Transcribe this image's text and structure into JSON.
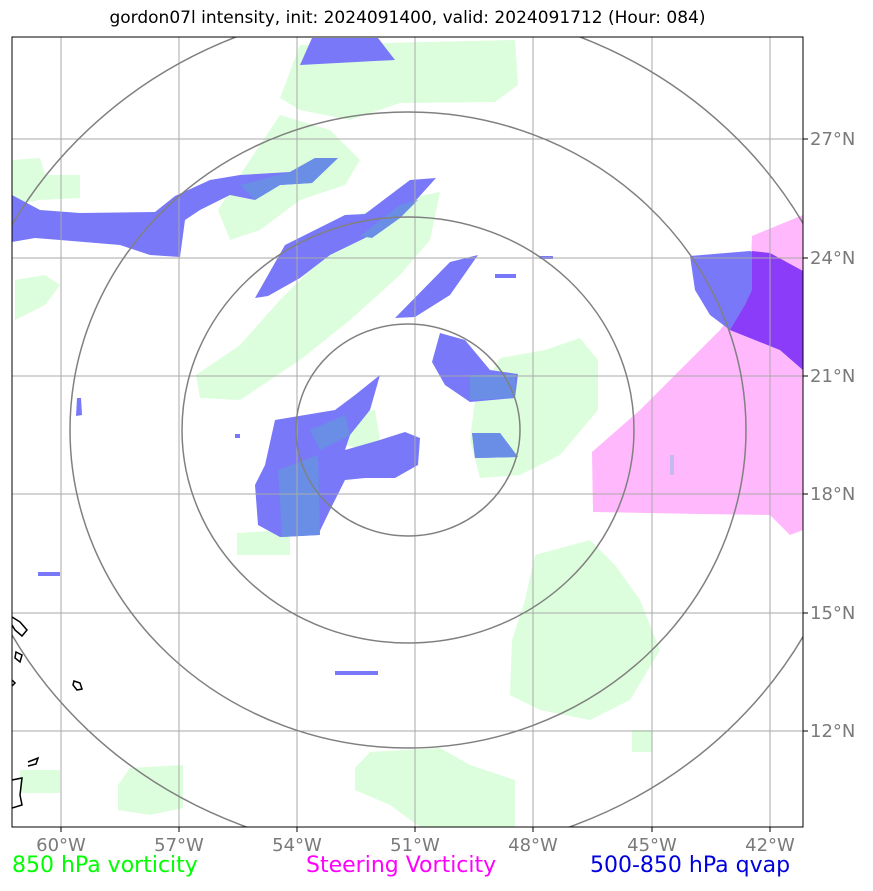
{
  "title": "gordon07l intensity, init: 2024091400, valid: 2024091712 (Hour: 084)",
  "lon_labels": [
    "60°W",
    "57°W",
    "54°W",
    "51°W",
    "48°W",
    "45°W",
    "42°W"
  ],
  "lat_labels": [
    "27°N",
    "24°N",
    "21°N",
    "18°N",
    "15°N",
    "12°N"
  ],
  "legend": {
    "green": "850 hPa vorticity",
    "magenta": "Steering Vorticity",
    "blue": "500-850 hPa qvap"
  },
  "colors": {
    "vorticity_850": "#dcfedc",
    "steering_vorticity": "#ffb8fc",
    "qvap": "#7878f8",
    "overlap_blue_green": "#6a8ee6",
    "overlap_blue_magenta": "#8a3cf8",
    "grid": "#a9a9a9",
    "range_rings": "#808080"
  }
}
